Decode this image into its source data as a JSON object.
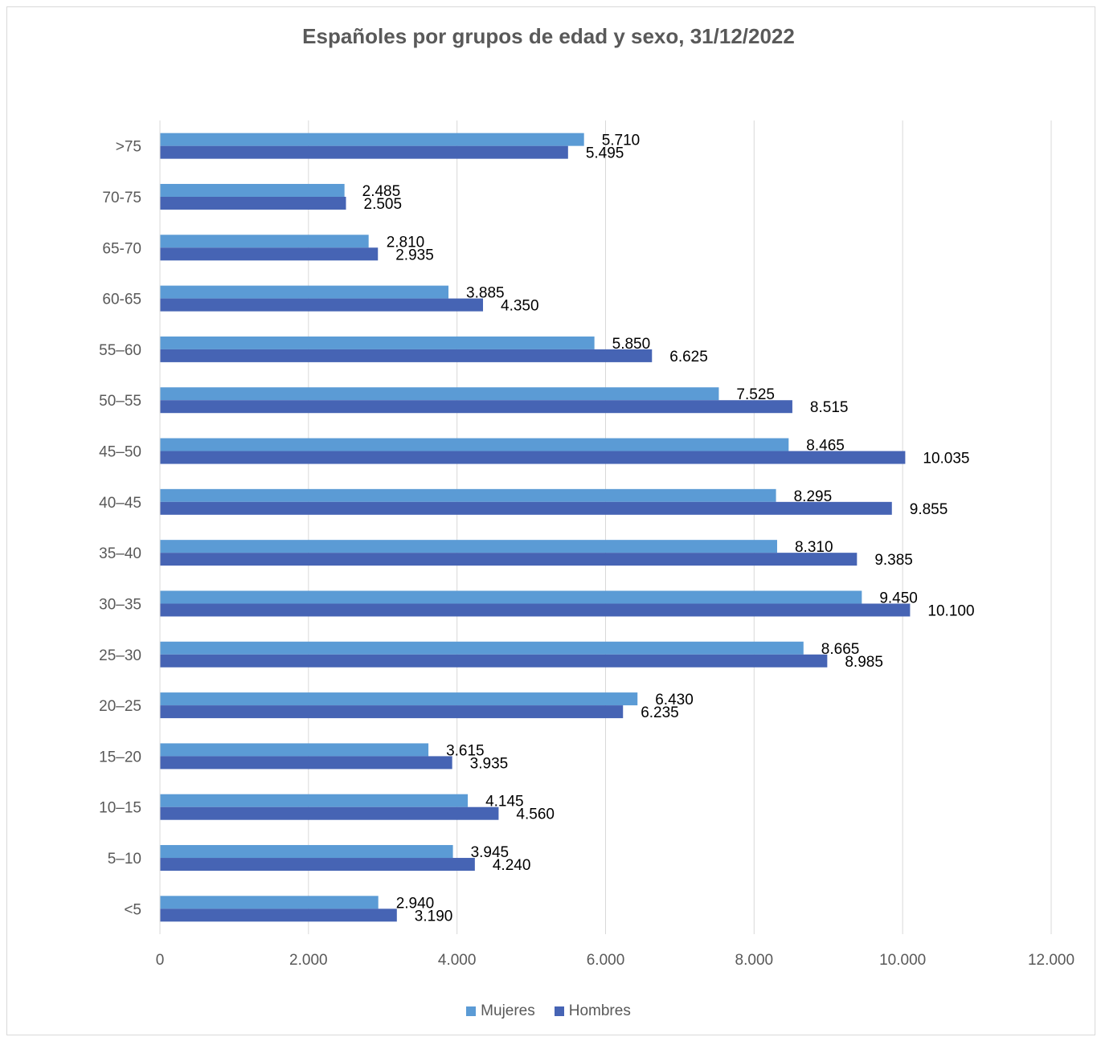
{
  "chart_data": {
    "type": "bar",
    "orientation": "horizontal",
    "title": "Españoles por grupos de edad y sexo, 31/12/2022",
    "categories": [
      ">75",
      "70-75",
      "65-70",
      "60-65",
      "55–60",
      "50–55",
      "45–50",
      "40–45",
      "35–40",
      "30–35",
      "25–30",
      "20–25",
      "15–20",
      "10–15",
      "5–10",
      "<5"
    ],
    "series": [
      {
        "name": "Mujeres",
        "color": "#5b9bd5",
        "values": [
          5710,
          2485,
          2810,
          3885,
          5850,
          7525,
          8465,
          8295,
          8310,
          9450,
          8665,
          6430,
          3615,
          4145,
          3945,
          2940
        ],
        "labels": [
          "5.710",
          "2.485",
          "2.810",
          "3.885",
          "5.850",
          "7.525",
          "8.465",
          "8.295",
          "8.310",
          "9.450",
          "8.665",
          "6.430",
          "3.615",
          "4.145",
          "3.945",
          "2.940"
        ]
      },
      {
        "name": "Hombres",
        "color": "#4664b4",
        "values": [
          5495,
          2505,
          2935,
          4350,
          6625,
          8515,
          10035,
          9855,
          9385,
          10100,
          8985,
          6235,
          3935,
          4560,
          4240,
          3190
        ],
        "labels": [
          "5.495",
          "2.505",
          "2.935",
          "4.350",
          "6.625",
          "8.515",
          "10.035",
          "9.855",
          "9.385",
          "10.100",
          "8.985",
          "6.235",
          "3.935",
          "4.560",
          "4.240",
          "3.190"
        ]
      }
    ],
    "xlim": [
      0,
      12000
    ],
    "xticks": [
      0,
      2000,
      4000,
      6000,
      8000,
      10000,
      12000
    ],
    "xtick_labels": [
      "0",
      "2.000",
      "4.000",
      "6.000",
      "8.000",
      "10.000",
      "12.000"
    ],
    "grid": "vertical",
    "legend_position": "bottom"
  }
}
